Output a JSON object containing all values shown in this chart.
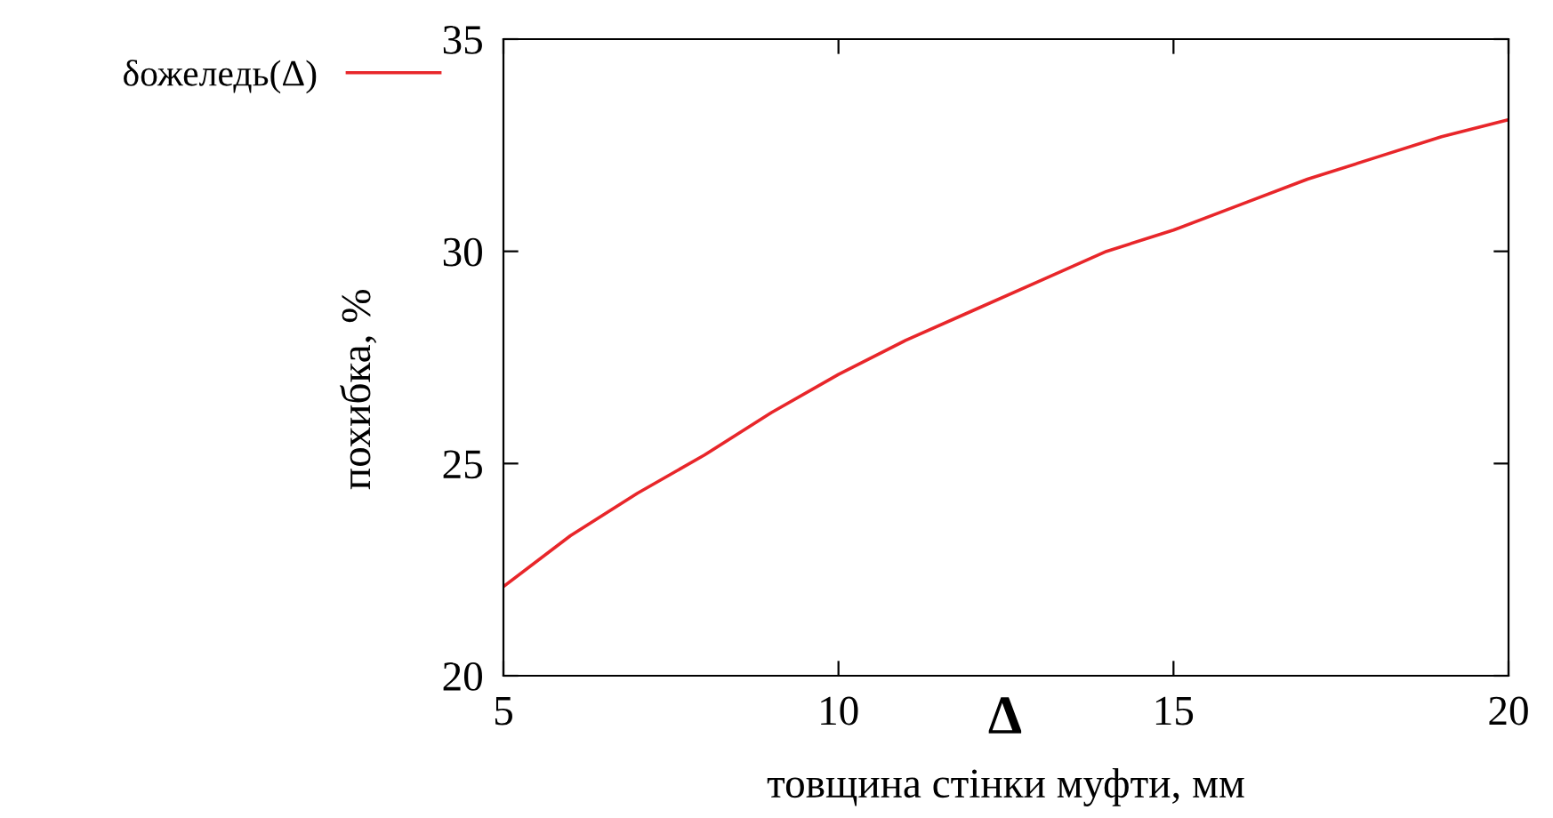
{
  "chart_data": {
    "type": "line",
    "xlabel": "товщина стінки муфти, мм",
    "ylabel": "похибка, %",
    "annotations": [
      "Δ"
    ],
    "x": [
      5,
      6,
      7,
      8,
      9,
      10,
      11,
      12,
      13,
      14,
      15,
      16,
      17,
      18,
      19,
      20
    ],
    "series": [
      {
        "name": "δожеледь(Δ)",
        "color": "#e8262a",
        "values": [
          22.1,
          23.3,
          24.3,
          25.2,
          26.2,
          27.1,
          27.9,
          28.6,
          29.3,
          30.0,
          30.5,
          31.1,
          31.7,
          32.2,
          32.7,
          33.1
        ]
      }
    ],
    "xlim": [
      5,
      20
    ],
    "xticks": [
      5,
      10,
      15,
      20
    ],
    "ylim": [
      20,
      35
    ],
    "yticks": [
      20,
      25,
      30,
      35
    ],
    "grid": false,
    "legend": "left",
    "line_style": "solid",
    "marker": "none"
  }
}
